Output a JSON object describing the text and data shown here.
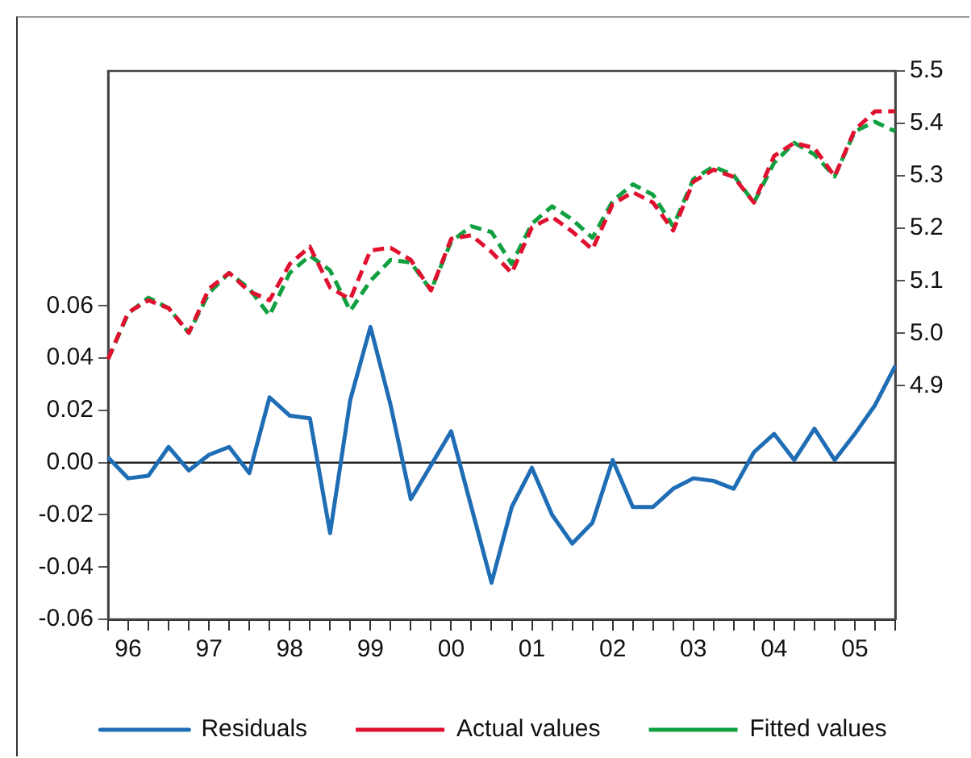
{
  "chart_data": {
    "type": "line",
    "categories": [
      null,
      "96",
      null,
      null,
      null,
      "97",
      null,
      null,
      null,
      "98",
      null,
      null,
      null,
      "99",
      null,
      null,
      null,
      "00",
      null,
      null,
      null,
      "01",
      null,
      null,
      null,
      "02",
      null,
      null,
      null,
      "03",
      null,
      null,
      null,
      "04",
      null,
      null,
      null,
      "05",
      null,
      null
    ],
    "series": [
      {
        "name": "Residuals",
        "color": "#1f6db5",
        "line_style": "solid",
        "axis": "y",
        "values": [
          0.002,
          -0.006,
          -0.005,
          0.006,
          -0.003,
          0.003,
          0.006,
          -0.004,
          0.025,
          0.018,
          0.017,
          -0.027,
          0.024,
          0.052,
          0.022,
          -0.014,
          -0.001,
          0.012,
          -0.017,
          -0.046,
          -0.017,
          -0.002,
          -0.02,
          -0.031,
          -0.023,
          0.001,
          -0.017,
          -0.017,
          -0.01,
          -0.006,
          -0.007,
          -0.01,
          0.004,
          0.011,
          0.001,
          0.013,
          0.001,
          0.011,
          0.022,
          0.037
        ]
      },
      {
        "name": "Actual values",
        "color": "#e0102f",
        "line_style": "dashed",
        "axis": "y2",
        "values": [
          4.951,
          5.04,
          5.063,
          5.048,
          5.001,
          5.085,
          5.115,
          5.08,
          5.063,
          5.132,
          5.165,
          5.087,
          5.065,
          5.158,
          5.163,
          5.14,
          5.082,
          5.18,
          5.187,
          5.155,
          5.115,
          5.202,
          5.222,
          5.194,
          5.16,
          5.246,
          5.269,
          5.249,
          5.196,
          5.289,
          5.312,
          5.298,
          5.249,
          5.338,
          5.363,
          5.353,
          5.299,
          5.388,
          5.423,
          5.423
        ]
      },
      {
        "name": "Fitted values",
        "color": "#10a040",
        "line_style": "dashed",
        "axis": "y2",
        "values": [
          4.951,
          5.038,
          5.068,
          5.048,
          5.001,
          5.077,
          5.115,
          5.085,
          5.034,
          5.115,
          5.148,
          5.12,
          5.043,
          5.1,
          5.14,
          5.135,
          5.082,
          5.175,
          5.204,
          5.193,
          5.132,
          5.209,
          5.242,
          5.217,
          5.182,
          5.252,
          5.284,
          5.264,
          5.204,
          5.294,
          5.318,
          5.301,
          5.249,
          5.325,
          5.363,
          5.341,
          5.299,
          5.385,
          5.403,
          5.385
        ]
      }
    ],
    "ylim": [
      -0.06,
      0.15
    ],
    "yticks": [
      -0.06,
      -0.04,
      -0.02,
      {
        "value": 0,
        "label": "0.00"
      },
      0.02,
      0.04,
      0.06
    ],
    "y2lim": [
      4.455,
      5.5
    ],
    "y2ticks": [
      4.9,
      {
        "value": 5.0,
        "label": "5.0"
      },
      5.1,
      5.2,
      5.3,
      5.4,
      5.5
    ],
    "ref_lines": [
      {
        "axis": "y",
        "value": 0
      }
    ],
    "grid": false,
    "legend": "bottom",
    "marker": "none"
  }
}
